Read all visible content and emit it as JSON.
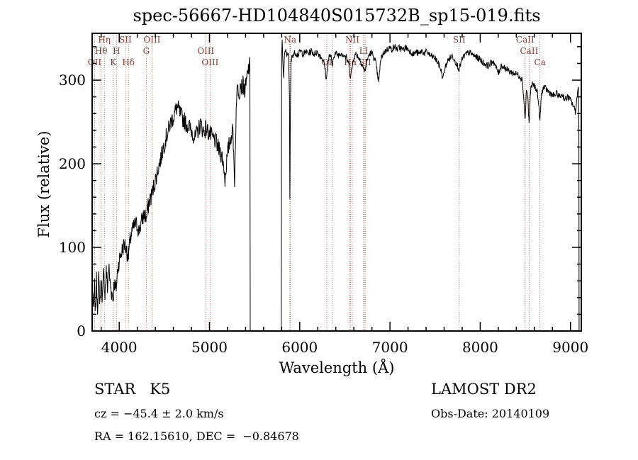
{
  "footer": {
    "class_label": "STAR   K5",
    "survey": "LAMOST DR2",
    "cz": "cz = −45.4 ± 2.0 km/s",
    "obs_date": "Obs-Date: 20140109",
    "ra_dec": "RA = 162.15610, DEC =  −0.84678"
  },
  "chart_data": {
    "type": "line",
    "title": "spec-56667-HD104840S015732B_sp15-019.fits",
    "xlabel": "Wavelength (Å)",
    "ylabel": "Flux (relative)",
    "xlim": [
      3700,
      9120
    ],
    "ylim": [
      0,
      356
    ],
    "xticks": [
      4000,
      5000,
      6000,
      7000,
      8000,
      9000
    ],
    "yticks": [
      0,
      100,
      200,
      300
    ],
    "x_minor_step": 200,
    "y_minor_step": 20,
    "grid": false,
    "line_color": "#000000",
    "marker_line_color": "#b5756b",
    "label_color": "#8b3a30",
    "dotted_lines": [
      3727,
      3798,
      3835,
      3934,
      3970,
      4068,
      4102,
      4300,
      4363,
      4959,
      5007,
      5890,
      5896,
      6300,
      6363,
      6548,
      6563,
      6583,
      6708,
      6716,
      6731,
      7767,
      8498,
      8542,
      8662
    ],
    "spectral_lines": [
      {
        "label": "Hη",
        "wavelength": 3835,
        "row": 1
      },
      {
        "label": "SII",
        "wavelength": 4068,
        "row": 1
      },
      {
        "label": "OIII",
        "wavelength": 4363,
        "row": 1
      },
      {
        "label": "Na",
        "wavelength": 5893,
        "row": 1
      },
      {
        "label": "NII",
        "wavelength": 6583,
        "row": 1
      },
      {
        "label": "SII",
        "wavelength": 7767,
        "row": 1
      },
      {
        "label": "CaII",
        "wavelength": 8498,
        "row": 1
      },
      {
        "label": "Hθ",
        "wavelength": 3798,
        "row": 2
      },
      {
        "label": "H",
        "wavelength": 3970,
        "row": 2
      },
      {
        "label": "G",
        "wavelength": 4300,
        "row": 2
      },
      {
        "label": "OIII",
        "wavelength": 4959,
        "row": 2
      },
      {
        "label": "LI",
        "wavelength": 6708,
        "row": 2
      },
      {
        "label": "CaII",
        "wavelength": 8542,
        "row": 2
      },
      {
        "label": "OII",
        "wavelength": 3727,
        "row": 3
      },
      {
        "label": "K",
        "wavelength": 3934,
        "row": 3
      },
      {
        "label": "Hδ",
        "wavelength": 4102,
        "row": 3
      },
      {
        "label": "OIII",
        "wavelength": 5007,
        "row": 3
      },
      {
        "label": "OI",
        "wavelength": 6300,
        "row": 3
      },
      {
        "label": "Hα",
        "wavelength": 6563,
        "row": 3
      },
      {
        "label": "SII",
        "wavelength": 6723,
        "row": 3
      },
      {
        "label": "Ca",
        "wavelength": 8662,
        "row": 3
      }
    ],
    "segments": [
      {
        "name": "blue-arm",
        "noise": 11,
        "points": [
          [
            3700,
            5
          ],
          [
            3708,
            50
          ],
          [
            3716,
            18
          ],
          [
            3726,
            55
          ],
          [
            3736,
            22
          ],
          [
            3748,
            60
          ],
          [
            3760,
            30
          ],
          [
            3772,
            62
          ],
          [
            3786,
            35
          ],
          [
            3800,
            58
          ],
          [
            3814,
            40
          ],
          [
            3828,
            68
          ],
          [
            3842,
            45
          ],
          [
            3856,
            72
          ],
          [
            3870,
            52
          ],
          [
            3884,
            78
          ],
          [
            3898,
            58
          ],
          [
            3912,
            48
          ],
          [
            3926,
            42
          ],
          [
            3934,
            38
          ],
          [
            3944,
            60
          ],
          [
            3958,
            48
          ],
          [
            3970,
            55
          ],
          [
            3984,
            75
          ],
          [
            4000,
            85
          ],
          [
            4020,
            92
          ],
          [
            4040,
            100
          ],
          [
            4060,
            104
          ],
          [
            4080,
            96
          ],
          [
            4102,
            90
          ],
          [
            4120,
            108
          ],
          [
            4140,
            118
          ],
          [
            4160,
            124
          ],
          [
            4180,
            128
          ],
          [
            4200,
            126
          ],
          [
            4220,
            120
          ],
          [
            4240,
            128
          ],
          [
            4260,
            135
          ],
          [
            4280,
            140
          ],
          [
            4300,
            134
          ],
          [
            4320,
            148
          ],
          [
            4340,
            158
          ],
          [
            4360,
            162
          ],
          [
            4380,
            172
          ],
          [
            4400,
            180
          ],
          [
            4420,
            190
          ],
          [
            4440,
            198
          ],
          [
            4460,
            206
          ],
          [
            4480,
            216
          ],
          [
            4500,
            224
          ],
          [
            4520,
            232
          ],
          [
            4540,
            238
          ],
          [
            4560,
            246
          ],
          [
            4580,
            252
          ],
          [
            4600,
            256
          ],
          [
            4620,
            262
          ],
          [
            4640,
            268
          ],
          [
            4660,
            264
          ],
          [
            4680,
            258
          ],
          [
            4700,
            255
          ],
          [
            4720,
            252
          ],
          [
            4740,
            248
          ],
          [
            4760,
            246
          ],
          [
            4780,
            243
          ],
          [
            4800,
            240
          ],
          [
            4820,
            235
          ],
          [
            4840,
            230
          ],
          [
            4860,
            236
          ],
          [
            4880,
            242
          ],
          [
            4900,
            248
          ],
          [
            4920,
            242
          ],
          [
            4940,
            238
          ],
          [
            4960,
            243
          ],
          [
            4980,
            239
          ],
          [
            5000,
            236
          ],
          [
            5020,
            233
          ],
          [
            5040,
            230
          ],
          [
            5060,
            228
          ],
          [
            5080,
            224
          ],
          [
            5100,
            218
          ],
          [
            5120,
            214
          ],
          [
            5140,
            208
          ],
          [
            5160,
            196
          ],
          [
            5172,
            180
          ],
          [
            5184,
            196
          ],
          [
            5200,
            212
          ],
          [
            5220,
            224
          ],
          [
            5240,
            234
          ],
          [
            5260,
            240
          ],
          [
            5272,
            200
          ],
          [
            5278,
            172
          ],
          [
            5284,
            210
          ],
          [
            5300,
            282
          ],
          [
            5315,
            292
          ],
          [
            5330,
            286
          ],
          [
            5345,
            298
          ],
          [
            5360,
            290
          ],
          [
            5375,
            296
          ],
          [
            5390,
            286
          ],
          [
            5405,
            294
          ],
          [
            5420,
            306
          ],
          [
            5435,
            315
          ],
          [
            5448,
            318
          ],
          [
            5452,
            0
          ]
        ]
      },
      {
        "name": "red-arm",
        "noise": 4,
        "points": [
          [
            5796,
            0
          ],
          [
            5800,
            332
          ],
          [
            5806,
            345
          ],
          [
            5814,
            322
          ],
          [
            5822,
            302
          ],
          [
            5830,
            330
          ],
          [
            5845,
            334
          ],
          [
            5860,
            330
          ],
          [
            5875,
            334
          ],
          [
            5886,
            280
          ],
          [
            5891,
            158
          ],
          [
            5896,
            262
          ],
          [
            5904,
            322
          ],
          [
            5920,
            330
          ],
          [
            5950,
            333
          ],
          [
            5980,
            330
          ],
          [
            6010,
            335
          ],
          [
            6040,
            331
          ],
          [
            6070,
            334
          ],
          [
            6100,
            332
          ],
          [
            6130,
            335
          ],
          [
            6160,
            331
          ],
          [
            6190,
            334
          ],
          [
            6220,
            330
          ],
          [
            6250,
            326
          ],
          [
            6275,
            318
          ],
          [
            6296,
            300
          ],
          [
            6308,
            316
          ],
          [
            6325,
            328
          ],
          [
            6345,
            330
          ],
          [
            6360,
            314
          ],
          [
            6375,
            330
          ],
          [
            6400,
            332
          ],
          [
            6430,
            330
          ],
          [
            6460,
            333
          ],
          [
            6490,
            330
          ],
          [
            6520,
            326
          ],
          [
            6545,
            318
          ],
          [
            6563,
            303
          ],
          [
            6580,
            315
          ],
          [
            6600,
            328
          ],
          [
            6625,
            331
          ],
          [
            6650,
            328
          ],
          [
            6675,
            323
          ],
          [
            6700,
            317
          ],
          [
            6715,
            310
          ],
          [
            6728,
            314
          ],
          [
            6745,
            322
          ],
          [
            6765,
            330
          ],
          [
            6790,
            333
          ],
          [
            6815,
            329
          ],
          [
            6840,
            322
          ],
          [
            6862,
            306
          ],
          [
            6876,
            297
          ],
          [
            6890,
            318
          ],
          [
            6910,
            329
          ],
          [
            6935,
            333
          ],
          [
            6960,
            336
          ],
          [
            6990,
            339
          ],
          [
            7020,
            337
          ],
          [
            7050,
            340
          ],
          [
            7080,
            337
          ],
          [
            7110,
            339
          ],
          [
            7140,
            336
          ],
          [
            7170,
            339
          ],
          [
            7200,
            337
          ],
          [
            7230,
            334
          ],
          [
            7260,
            331
          ],
          [
            7290,
            334
          ],
          [
            7320,
            331
          ],
          [
            7350,
            335
          ],
          [
            7380,
            332
          ],
          [
            7410,
            334
          ],
          [
            7440,
            330
          ],
          [
            7470,
            328
          ],
          [
            7500,
            326
          ],
          [
            7530,
            321
          ],
          [
            7560,
            314
          ],
          [
            7588,
            302
          ],
          [
            7605,
            312
          ],
          [
            7630,
            321
          ],
          [
            7660,
            326
          ],
          [
            7690,
            329
          ],
          [
            7715,
            325
          ],
          [
            7740,
            319
          ],
          [
            7767,
            313
          ],
          [
            7790,
            322
          ],
          [
            7815,
            328
          ],
          [
            7845,
            331
          ],
          [
            7875,
            333
          ],
          [
            7905,
            331
          ],
          [
            7935,
            329
          ],
          [
            7965,
            327
          ],
          [
            7995,
            325
          ],
          [
            8025,
            322
          ],
          [
            8055,
            319
          ],
          [
            8085,
            317
          ],
          [
            8115,
            320
          ],
          [
            8145,
            323
          ],
          [
            8175,
            315
          ],
          [
            8205,
            308
          ],
          [
            8230,
            318
          ],
          [
            8260,
            316
          ],
          [
            8290,
            313
          ],
          [
            8320,
            311
          ],
          [
            8350,
            309
          ],
          [
            8380,
            308
          ],
          [
            8410,
            307
          ],
          [
            8440,
            305
          ],
          [
            8468,
            300
          ],
          [
            8484,
            275
          ],
          [
            8498,
            252
          ],
          [
            8512,
            290
          ],
          [
            8528,
            278
          ],
          [
            8542,
            246
          ],
          [
            8558,
            288
          ],
          [
            8580,
            296
          ],
          [
            8605,
            292
          ],
          [
            8630,
            288
          ],
          [
            8648,
            270
          ],
          [
            8662,
            250
          ],
          [
            8676,
            280
          ],
          [
            8700,
            292
          ],
          [
            8730,
            289
          ],
          [
            8760,
            286
          ],
          [
            8790,
            283
          ],
          [
            8820,
            281
          ],
          [
            8850,
            284
          ],
          [
            8880,
            280
          ],
          [
            8910,
            283
          ],
          [
            8940,
            277
          ],
          [
            8970,
            280
          ],
          [
            9000,
            276
          ],
          [
            9030,
            270
          ],
          [
            9055,
            262
          ],
          [
            9075,
            282
          ],
          [
            9088,
            292
          ],
          [
            9093,
            240
          ],
          [
            9096,
            0
          ]
        ]
      }
    ]
  }
}
